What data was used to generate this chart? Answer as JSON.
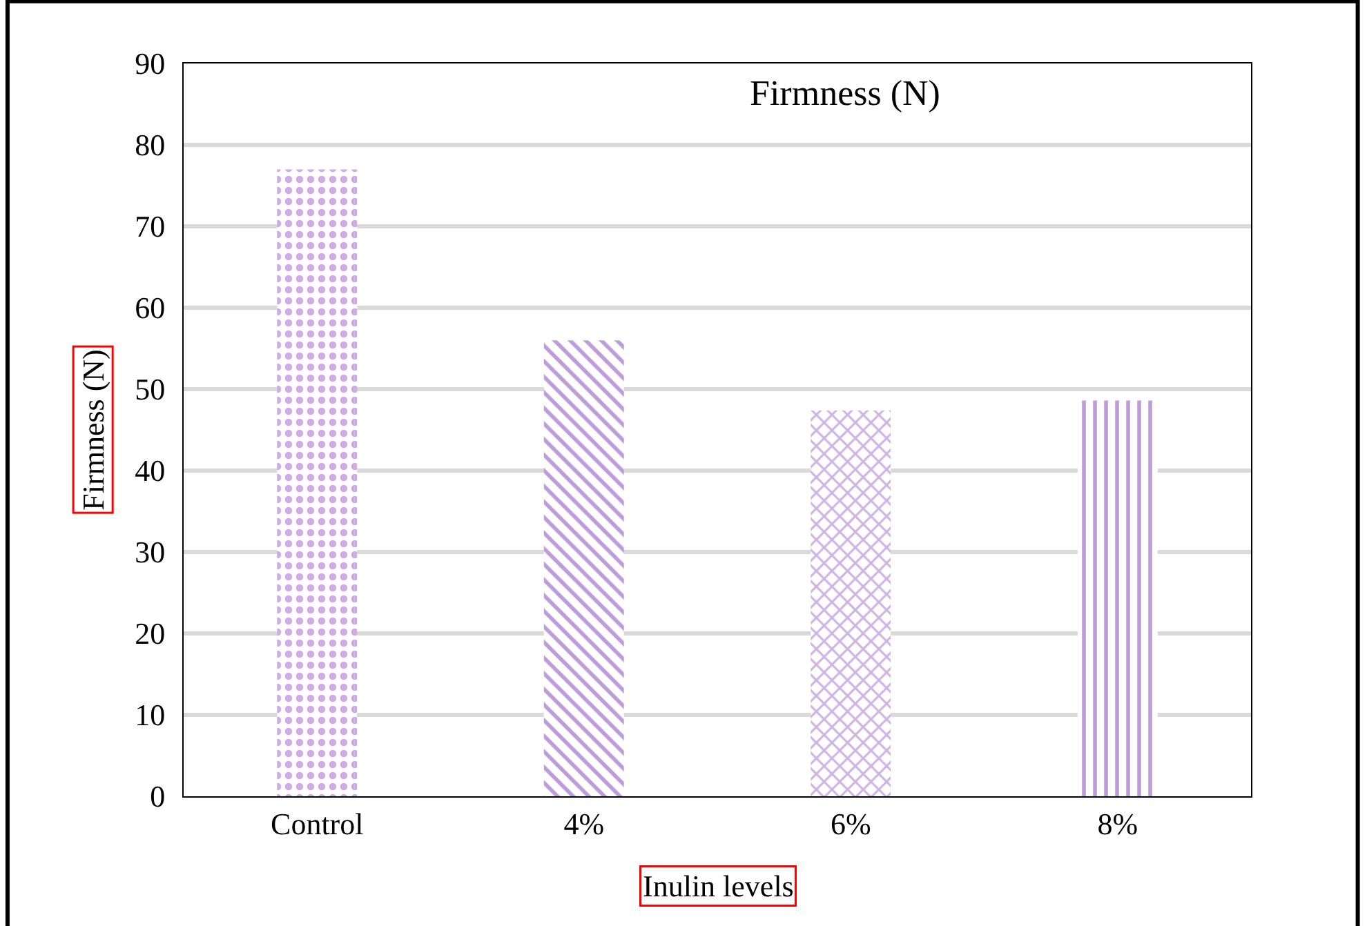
{
  "chart_data": {
    "type": "bar",
    "title": "Firmness (N)",
    "xlabel": "Inulin levels",
    "ylabel": "Firmness (N)",
    "categories": [
      "Control",
      "4%",
      "6%",
      "8%"
    ],
    "values": [
      77,
      56,
      47.4,
      48.6
    ],
    "colors": [
      "#9b59c8",
      "#7a3bb5",
      "#9b6ac8",
      "#7a3bb5"
    ],
    "ylim": [
      0,
      90
    ],
    "yticks": [
      0,
      10,
      20,
      30,
      40,
      50,
      60,
      70,
      80,
      90
    ],
    "grid": "y",
    "legend": false
  }
}
